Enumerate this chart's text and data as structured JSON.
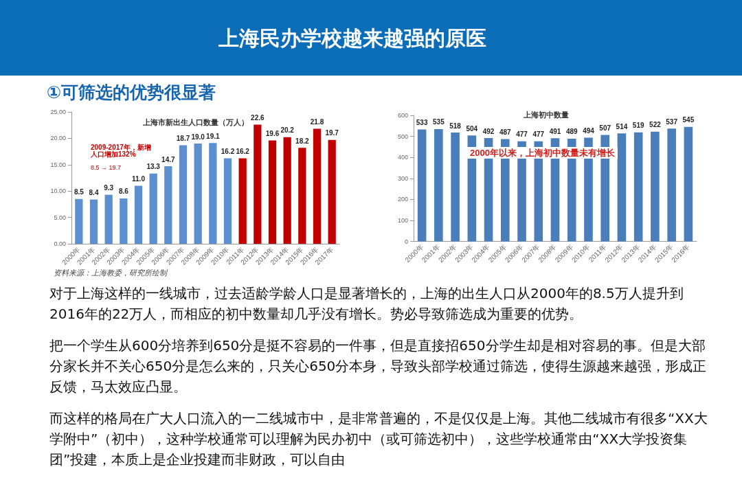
{
  "chart_data": [
    {
      "type": "other",
      "title": "上海民办学校越来越强的原医",
      "subtitle": "①可筛选的优势很显著",
      "annotations": [
        "对于上海这样的一线城市，过去适龄学龄人口是显著增长的，上海的出生人口从2000年的8.5万人提升到2016年的22万人，而相应的初中数量却几乎没有增长。势必导致筛选成为重要的优势。",
        "把一个学生从600分培养到650分是挺不容易的一件事，但是直接招650分学生却是相对容易的事。但是大部分家长并不关心650分是怎么来的，只关心650分本身，导致头部学校通过筛选，使得生源越来越强，形成正反馈，马太效应凸显。",
        "而这样的格局在广大人口流入的一二线城市中，是非常普遍的，不是仅仅是上海。其他二线城市有很多“XX大学附中”（初中），这种学校通常可以理解为民办初中（或可筛选初中），这些学校通常由“XX大学投资集团”投建，本质上是企业投建而非财政，可以自由"
      ]
    },
    {
      "type": "bar",
      "title": "上海市新出生人口数量（万人）",
      "categories": [
        "2000年",
        "2001年",
        "2002年",
        "2003年",
        "2004年",
        "2005年",
        "2006年",
        "2007年",
        "2008年",
        "2009年",
        "2010年",
        "2011年",
        "2012年",
        "2013年",
        "2014年",
        "2015年",
        "2016年",
        "2017年"
      ],
      "values": [
        8.5,
        8.4,
        9.3,
        8.6,
        11.0,
        13.3,
        14.7,
        18.7,
        19.0,
        19.1,
        16.2,
        16.2,
        22.6,
        19.6,
        20.2,
        18.2,
        21.8,
        19.7
      ],
      "value_labels": [
        "8.5",
        "8.4",
        "9.3",
        "8.6",
        "11.0",
        "13.3",
        "14.7",
        "18.7",
        "19.0",
        "19.1",
        "16.2",
        "16.2",
        "22.6",
        "19.6",
        "20.2",
        "18.2",
        "21.8",
        "19.7"
      ],
      "colors": [
        "#5b8fd0",
        "#5b8fd0",
        "#5b8fd0",
        "#5b8fd0",
        "#5b8fd0",
        "#5b8fd0",
        "#5b8fd0",
        "#5b8fd0",
        "#5b8fd0",
        "#5b8fd0",
        "#5b8fd0",
        "#c00000",
        "#c00000",
        "#c00000",
        "#c00000",
        "#c00000",
        "#c00000",
        "#c00000"
      ],
      "ylim": [
        0,
        25
      ],
      "yticks": [
        {
          "value": 0,
          "label": "0.00"
        },
        {
          "value": 5,
          "label": "5.00"
        },
        {
          "value": 10,
          "label": "10.00"
        },
        {
          "value": 15,
          "label": "15.00"
        },
        {
          "value": 20,
          "label": "20.00"
        },
        {
          "value": 25,
          "label": "25.00"
        }
      ],
      "annotations": [
        "2009-2017年，新增人口增加132%",
        "8.5 → 19.7",
        "资料来源：上海教委，研究所绘制"
      ]
    },
    {
      "type": "bar",
      "title": "上海初中数量",
      "categories": [
        "2000年",
        "2001年",
        "2002年",
        "2003年",
        "2004年",
        "2005年",
        "2006年",
        "2007年",
        "2008年",
        "2009年",
        "2010年",
        "2011年",
        "2012年",
        "2013年",
        "2014年",
        "2015年",
        "2016年"
      ],
      "values": [
        533,
        535,
        518,
        504,
        492,
        487,
        477,
        477,
        491,
        489,
        494,
        507,
        514,
        519,
        522,
        537,
        545
      ],
      "color": "#4a7ebb",
      "data_labels": true,
      "ylim": [
        0,
        600
      ],
      "yticks": [
        0,
        100,
        200,
        300,
        400,
        500,
        600
      ],
      "annotations": [
        "2000年以来，上海初中数量未有增长"
      ]
    }
  ]
}
